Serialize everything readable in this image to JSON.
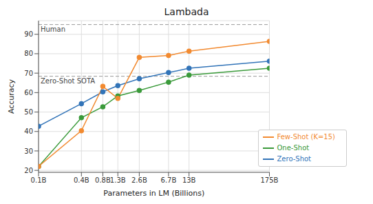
{
  "chart_data": {
    "type": "line",
    "title": "Lambada",
    "x_label": "Parameters in LM (Billions)",
    "y_label": "Accuracy",
    "x": [
      0.1,
      0.4,
      0.8,
      1.3,
      2.6,
      6.7,
      13,
      175
    ],
    "xlim": [
      0.1,
      175
    ],
    "xticks": [
      {
        "value": 0.1,
        "label": "0.1B"
      },
      {
        "value": 0.4,
        "label": "0.4B"
      },
      {
        "value": 0.8,
        "label": "0.8B"
      },
      {
        "value": 1.3,
        "label": "1.3B"
      },
      {
        "value": 2.6,
        "label": "2.6B"
      },
      {
        "value": 6.7,
        "label": "6.7B"
      },
      {
        "value": 13,
        "label": "13B"
      },
      {
        "value": 175,
        "label": "175B"
      }
    ],
    "log": "x",
    "ylim": [
      19,
      97
    ],
    "yticks": [
      20,
      30,
      40,
      50,
      60,
      70,
      80,
      90
    ],
    "grid": true,
    "legend": "lower right",
    "series": [
      {
        "name": "Zero-Shot",
        "color": "#3274b8",
        "marker": "circle",
        "values": [
          42.7,
          54.3,
          60.4,
          63.6,
          67.1,
          70.3,
          72.5,
          76.2
        ]
      },
      {
        "name": "One-Shot",
        "color": "#3a9a3a",
        "marker": "circle",
        "values": [
          22.0,
          47.1,
          52.7,
          58.3,
          61.1,
          65.4,
          69.0,
          72.5
        ]
      },
      {
        "name": "Few-Shot (K=15)",
        "color": "#f28a30",
        "marker": "circle",
        "values": [
          22.0,
          40.4,
          63.2,
          57.0,
          78.1,
          79.1,
          81.3,
          86.4
        ]
      }
    ],
    "annotations": [
      {
        "text": "Human",
        "y": 95,
        "line_style": "dashed"
      },
      {
        "text": "Zero-Shot SOTA",
        "y": 68.4,
        "line_style": "dashed"
      }
    ]
  }
}
